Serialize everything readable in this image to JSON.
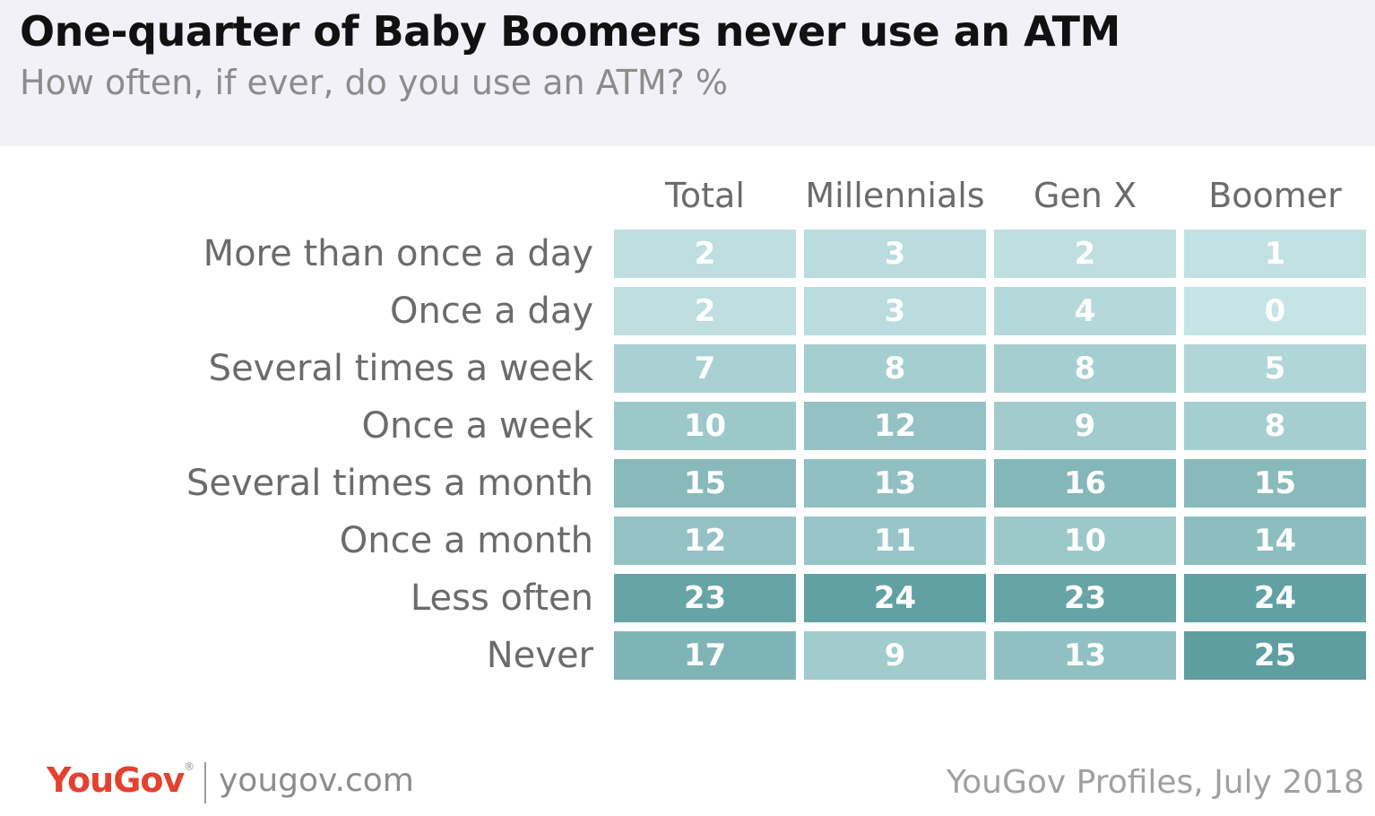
{
  "header": {
    "title": "One-quarter of Baby Boomers never use an ATM",
    "subtitle": "How often, if ever, do you use an ATM? %"
  },
  "footer": {
    "logo": "YouGov",
    "url": "yougov.com",
    "source": "YouGov Profiles, July 2018"
  },
  "colors": {
    "header_bg": "#f1f1f7",
    "scale_low": "#c6e4e6",
    "scale_high": "#5e9ea0",
    "logo": "#e4412f"
  },
  "chart_data": {
    "type": "table",
    "title": "One-quarter of Baby Boomers never use an ATM",
    "subtitle": "How often, if ever, do you use an ATM? %",
    "columns": [
      "Total",
      "Millennials",
      "Gen X",
      "Boomer"
    ],
    "rows": [
      "More than once a day",
      "Once a day",
      "Several times a week",
      "Once a week",
      "Several times a month",
      "Once a month",
      "Less often",
      "Never"
    ],
    "values": [
      [
        2,
        3,
        2,
        1
      ],
      [
        2,
        3,
        4,
        0
      ],
      [
        7,
        8,
        8,
        5
      ],
      [
        10,
        12,
        9,
        8
      ],
      [
        15,
        13,
        16,
        15
      ],
      [
        12,
        11,
        10,
        14
      ],
      [
        23,
        24,
        23,
        24
      ],
      [
        17,
        9,
        13,
        25
      ]
    ],
    "value_range": [
      0,
      25
    ]
  }
}
